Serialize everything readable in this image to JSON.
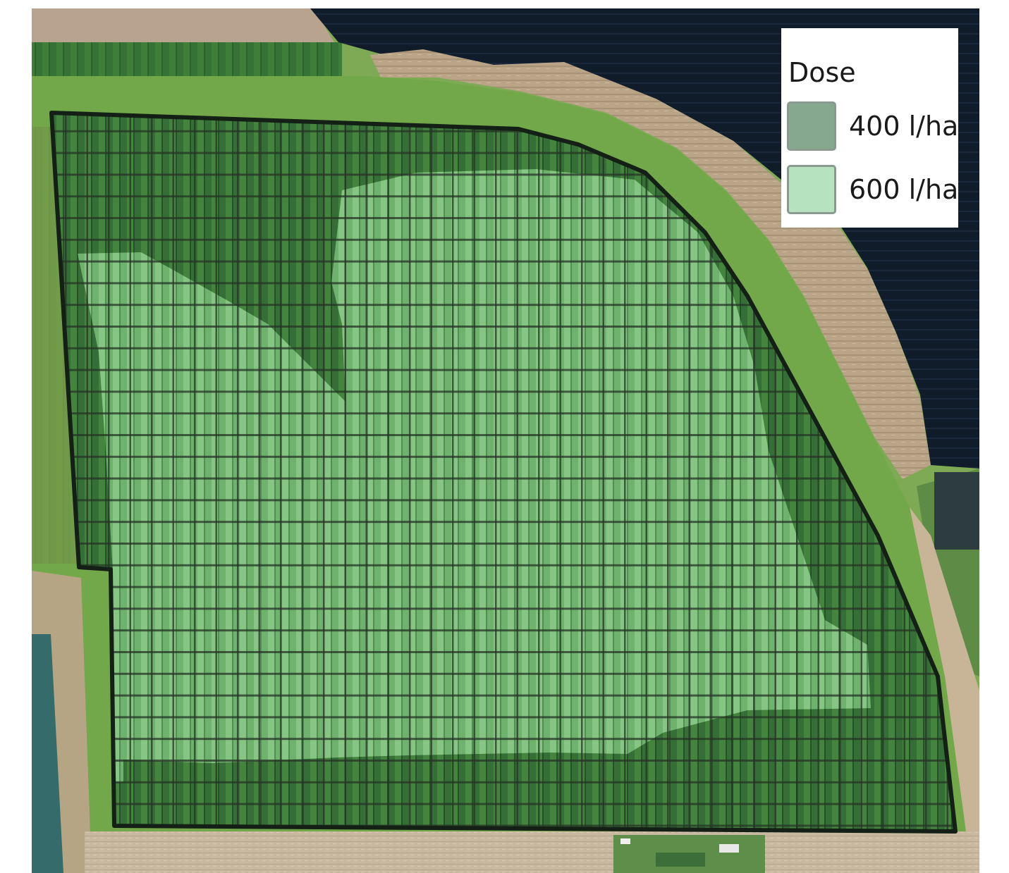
{
  "legend": {
    "title": "Dose",
    "items": [
      {
        "label": "400 l/ha",
        "color": "#86a88f"
      },
      {
        "label": "600 l/ha",
        "color": "#b7e2c0"
      }
    ]
  },
  "colors": {
    "dark_field": "#0f1b2a",
    "bare_soil": "#bfa88c",
    "grass_border": "#6fa84a",
    "crop_dark": "#2f6a32",
    "crop_light": "#79c07a",
    "grid_line": "#1d2a1c",
    "gravel": "#d8cdb8"
  }
}
